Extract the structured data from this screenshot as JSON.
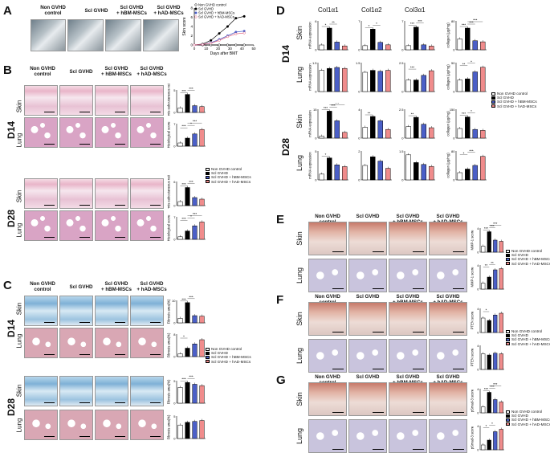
{
  "panels": {
    "A": "A",
    "B": "B",
    "C": "C",
    "D": "D",
    "E": "E",
    "F": "F",
    "G": "G"
  },
  "groups": {
    "non": "Non GVHD\ncontrol",
    "scl": "Scl GVHD",
    "hbm": "Scl GVHD\n+ hBM-MSCs",
    "had": "Scl GVHD\n+ hAD-MSCs"
  },
  "legend": [
    "Non GVHD control",
    "Scl GVHD",
    "Scl GVHD + hBM-MSCs",
    "Scl GVHD + hAD-MSCs"
  ],
  "legend_a": [
    "Non GVHD control",
    "Scl GVHD",
    "Scl GVHD + hBM-MSCs",
    "Scl GVHD + hAD-MSCs"
  ],
  "rows": {
    "skin": "Skin",
    "lung": "Lung"
  },
  "days": {
    "d14": "D14",
    "d28": "D28"
  },
  "colors": {
    "non": "#ffffff",
    "scl": "#000000",
    "hbm": "#4b5fc7",
    "had": "#f08c8c"
  },
  "panelA": {
    "ylabel": "Skin score",
    "xlabel": "Days after BMT",
    "xticks": [
      "0",
      "10",
      "20",
      "30",
      "40",
      "50"
    ],
    "yticks": [
      "0",
      "2",
      "4",
      "6",
      "8"
    ]
  },
  "panelB": {
    "ylabels": [
      "Dermis-subcutaneous ratio",
      "Histological score",
      "Dermis-subcutaneous ratio",
      "Histological score"
    ]
  },
  "panelC": {
    "ylabels": [
      "Fibrosis area(%)",
      "Fibrosis area(%)",
      "Fibrosis area(%)",
      "Fibrosis area(%)"
    ]
  },
  "panelD": {
    "cols": [
      "Col1α1",
      "Col1α2",
      "Col3α1"
    ],
    "mrna": "mRNA expression",
    "collagen": "collagen (μg/mg)"
  },
  "panelE": {
    "ylabels": [
      "MMP-1 score",
      "MMP-1 score"
    ]
  },
  "panelF": {
    "ylabels": [
      "PTEN score",
      "PTEN score"
    ]
  },
  "panelG": {
    "ylabels": [
      "pSmad-3 score",
      "pSmad-3 score"
    ]
  },
  "chart_data": [
    {
      "type": "bar",
      "id": "B-d14-skin",
      "categories": [
        "Non GVHD control",
        "Scl GVHD",
        "Scl GVHD + hBM-MSCs",
        "Scl GVHD + hAD-MSCs"
      ],
      "values": [
        1,
        4,
        1.5,
        1.3
      ],
      "ylim": [
        0,
        5
      ],
      "sig": [
        "***",
        "***"
      ]
    },
    {
      "type": "bar",
      "id": "B-d14-lung",
      "categories": [
        "Non GVHD control",
        "Scl GVHD",
        "Scl GVHD + hBM-MSCs",
        "Scl GVHD + hAD-MSCs"
      ],
      "values": [
        1,
        2.5,
        3.8,
        5.2
      ],
      "ylim": [
        0,
        7
      ],
      "sig": [
        "***",
        "*",
        "***"
      ]
    },
    {
      "type": "bar",
      "id": "B-d28-skin",
      "categories": [
        "Non GVHD control",
        "Scl GVHD",
        "Scl GVHD + hBM-MSCs",
        "Scl GVHD + hAD-MSCs"
      ],
      "values": [
        1,
        4.5,
        2,
        1.6
      ],
      "ylim": [
        0,
        6
      ],
      "sig": [
        "***",
        "***"
      ]
    },
    {
      "type": "bar",
      "id": "B-d28-lung",
      "categories": [
        "Non GVHD control",
        "Scl GVHD",
        "Scl GVHD + hBM-MSCs",
        "Scl GVHD + hAD-MSCs"
      ],
      "values": [
        0.8,
        2.6,
        4.2,
        5.4
      ],
      "ylim": [
        0,
        7
      ],
      "sig": [
        "***",
        "*",
        "***"
      ]
    },
    {
      "type": "bar",
      "id": "C-d14-skin",
      "categories": [
        "Non GVHD control",
        "Scl GVHD",
        "Scl GVHD + hBM-MSCs",
        "Scl GVHD + hAD-MSCs"
      ],
      "values": [
        2,
        9,
        3.2,
        3
      ],
      "ylim": [
        0,
        10
      ],
      "sig": [
        "***",
        "***"
      ]
    },
    {
      "type": "bar",
      "id": "C-d14-lung",
      "categories": [
        "Non GVHD control",
        "Scl GVHD",
        "Scl GVHD + hBM-MSCs",
        "Scl GVHD + hAD-MSCs"
      ],
      "values": [
        1,
        3,
        4.5,
        6
      ],
      "ylim": [
        0,
        8
      ],
      "sig": [
        "*"
      ]
    },
    {
      "type": "bar",
      "id": "C-d28-skin",
      "categories": [
        "Non GVHD control",
        "Scl GVHD",
        "Scl GVHD + hBM-MSCs",
        "Scl GVHD + hAD-MSCs"
      ],
      "values": [
        3.5,
        4.6,
        4.2,
        3.9
      ],
      "ylim": [
        0,
        5
      ],
      "sig": [
        "***",
        "***"
      ]
    },
    {
      "type": "bar",
      "id": "C-d28-lung",
      "categories": [
        "Non GVHD control",
        "Scl GVHD",
        "Scl GVHD + hBM-MSCs",
        "Scl GVHD + hAD-MSCs"
      ],
      "values": [
        3,
        3.6,
        3.8,
        4
      ],
      "ylim": [
        0,
        5
      ],
      "sig": []
    },
    {
      "type": "bar",
      "id": "D-d14-skin-c1",
      "categories": [
        "Non GVHD control",
        "Scl GVHD",
        "Scl GVHD + hBM-MSCs",
        "Scl GVHD + hAD-MSCs"
      ],
      "values": [
        1,
        4.5,
        1.6,
        0.8
      ],
      "ylim": [
        0,
        6
      ],
      "sig": [
        "*",
        "**"
      ]
    },
    {
      "type": "bar",
      "id": "D-d14-skin-c2",
      "categories": [
        "Non GVHD control",
        "Scl GVHD",
        "Scl GVHD + hBM-MSCs",
        "Scl GVHD + hAD-MSCs"
      ],
      "values": [
        1,
        5,
        1.8,
        1.2
      ],
      "ylim": [
        0,
        7
      ],
      "sig": [
        "*",
        "*"
      ]
    },
    {
      "type": "bar",
      "id": "D-d14-skin-c3",
      "categories": [
        "Non GVHD control",
        "Scl GVHD",
        "Scl GVHD + hBM-MSCs",
        "Scl GVHD + hAD-MSCs"
      ],
      "values": [
        1,
        5.5,
        1.2,
        0.9
      ],
      "ylim": [
        0,
        7
      ],
      "sig": [
        "***",
        "***"
      ]
    },
    {
      "type": "bar",
      "id": "D-d14-skin-col",
      "categories": [
        "Non GVHD control",
        "Scl GVHD",
        "Scl GVHD + hBM-MSCs",
        "Scl GVHD + hAD-MSCs"
      ],
      "values": [
        30,
        60,
        25,
        22
      ],
      "ylim": [
        0,
        80
      ],
      "sig": [
        "***",
        "***",
        "***"
      ]
    },
    {
      "type": "bar",
      "id": "D-d14-lung-c1",
      "categories": [
        "Non GVHD control",
        "Scl GVHD",
        "Scl GVHD + hBM-MSCs",
        "Scl GVHD + hAD-MSCs"
      ],
      "values": [
        1.1,
        1.2,
        1.25,
        1.2
      ],
      "ylim": [
        0,
        1.5
      ],
      "sig": []
    },
    {
      "type": "bar",
      "id": "D-d14-lung-c2",
      "categories": [
        "Non GVHD control",
        "Scl GVHD",
        "Scl GVHD + hBM-MSCs",
        "Scl GVHD + hAD-MSCs"
      ],
      "values": [
        1,
        1.1,
        1.05,
        1.1
      ],
      "ylim": [
        0,
        1.5
      ],
      "sig": []
    },
    {
      "type": "bar",
      "id": "D-d14-lung-c3",
      "categories": [
        "Non GVHD control",
        "Scl GVHD",
        "Scl GVHD + hBM-MSCs",
        "Scl GVHD + hAD-MSCs"
      ],
      "values": [
        1,
        1,
        1.4,
        1.8
      ],
      "ylim": [
        0,
        2.5
      ],
      "sig": [
        "***"
      ]
    },
    {
      "type": "bar",
      "id": "D-d14-lung-col",
      "categories": [
        "Non GVHD control",
        "Scl GVHD",
        "Scl GVHD + hBM-MSCs",
        "Scl GVHD + hAD-MSCs"
      ],
      "values": [
        20,
        22,
        34,
        42
      ],
      "ylim": [
        0,
        50
      ],
      "sig": [
        "**",
        "*"
      ]
    },
    {
      "type": "bar",
      "id": "D-d28-skin-c1",
      "categories": [
        "Non GVHD control",
        "Scl GVHD",
        "Scl GVHD + hBM-MSCs",
        "Scl GVHD + hAD-MSCs"
      ],
      "values": [
        1,
        14,
        9,
        3
      ],
      "ylim": [
        0,
        15
      ],
      "sig": [
        "***",
        "***",
        "***"
      ]
    },
    {
      "type": "bar",
      "id": "D-d28-skin-c2",
      "categories": [
        "Non GVHD control",
        "Scl GVHD",
        "Scl GVHD + hBM-MSCs",
        "Scl GVHD + hAD-MSCs"
      ],
      "values": [
        1.5,
        3,
        2.4,
        1.2
      ],
      "ylim": [
        0,
        4
      ],
      "sig": [
        "**"
      ]
    },
    {
      "type": "bar",
      "id": "D-d28-skin-c3",
      "categories": [
        "Non GVHD control",
        "Scl GVHD",
        "Scl GVHD + hBM-MSCs",
        "Scl GVHD + hAD-MSCs"
      ],
      "values": [
        1,
        1.8,
        1.2,
        0.9
      ],
      "ylim": [
        0,
        2.5
      ],
      "sig": [
        "**"
      ]
    },
    {
      "type": "bar",
      "id": "D-d28-skin-col",
      "categories": [
        "Non GVHD control",
        "Scl GVHD",
        "Scl GVHD + hBM-MSCs",
        "Scl GVHD + hAD-MSCs"
      ],
      "values": [
        50,
        110,
        45,
        40
      ],
      "ylim": [
        0,
        150
      ],
      "sig": [
        "***",
        "*"
      ]
    },
    {
      "type": "bar",
      "id": "D-d28-lung-c1",
      "categories": [
        "Non GVHD control",
        "Scl GVHD",
        "Scl GVHD + hBM-MSCs",
        "Scl GVHD + hAD-MSCs"
      ],
      "values": [
        1,
        3.8,
        2.6,
        2.3
      ],
      "ylim": [
        0,
        5
      ],
      "sig": [
        "*"
      ]
    },
    {
      "type": "bar",
      "id": "D-d28-lung-c2",
      "categories": [
        "Non GVHD control",
        "Scl GVHD",
        "Scl GVHD + hBM-MSCs",
        "Scl GVHD + hAD-MSCs"
      ],
      "values": [
        1,
        1.6,
        1.3,
        0.8
      ],
      "ylim": [
        0,
        2
      ],
      "sig": []
    },
    {
      "type": "bar",
      "id": "D-d28-lung-c3",
      "categories": [
        "Non GVHD control",
        "Scl GVHD",
        "Scl GVHD + hBM-MSCs",
        "Scl GVHD + hAD-MSCs"
      ],
      "values": [
        1.3,
        0.9,
        0.8,
        0.7
      ],
      "ylim": [
        0,
        1.5
      ],
      "sig": []
    },
    {
      "type": "bar",
      "id": "D-d28-lung-col",
      "categories": [
        "Non GVHD control",
        "Scl GVHD",
        "Scl GVHD + hBM-MSCs",
        "Scl GVHD + hAD-MSCs"
      ],
      "values": [
        20,
        30,
        40,
        65
      ],
      "ylim": [
        0,
        80
      ],
      "sig": [
        "*",
        "***"
      ]
    },
    {
      "type": "bar",
      "id": "E-skin",
      "categories": [
        "Non GVHD control",
        "Scl GVHD",
        "Scl GVHD + hBM-MSCs",
        "Scl GVHD + hAD-MSCs"
      ],
      "values": [
        1,
        3.4,
        2,
        1.8
      ],
      "ylim": [
        0,
        4
      ],
      "sig": [
        "***",
        "***",
        "***"
      ]
    },
    {
      "type": "bar",
      "id": "E-lung",
      "categories": [
        "Non GVHD control",
        "Scl GVHD",
        "Scl GVHD + hBM-MSCs",
        "Scl GVHD + hAD-MSCs"
      ],
      "values": [
        1,
        2,
        3.2,
        3.4
      ],
      "ylim": [
        0,
        4
      ],
      "sig": [
        "**",
        "**"
      ]
    },
    {
      "type": "bar",
      "id": "F-skin",
      "categories": [
        "Non GVHD control",
        "Scl GVHD",
        "Scl GVHD + hBM-MSCs",
        "Scl GVHD + hAD-MSCs"
      ],
      "values": [
        2.4,
        2,
        2.9,
        3.2
      ],
      "ylim": [
        0,
        4
      ],
      "sig": [
        "*"
      ]
    },
    {
      "type": "bar",
      "id": "F-lung",
      "categories": [
        "Non GVHD control",
        "Scl GVHD",
        "Scl GVHD + hBM-MSCs",
        "Scl GVHD + hAD-MSCs"
      ],
      "values": [
        2.6,
        2.4,
        2.7,
        2.6
      ],
      "ylim": [
        0,
        4
      ],
      "sig": []
    },
    {
      "type": "bar",
      "id": "G-skin",
      "categories": [
        "Non GVHD control",
        "Scl GVHD",
        "Scl GVHD + hBM-MSCs",
        "Scl GVHD + hAD-MSCs"
      ],
      "values": [
        1,
        3.4,
        2.2,
        1.8
      ],
      "ylim": [
        0,
        4
      ],
      "sig": [
        "***",
        "***",
        "***"
      ]
    },
    {
      "type": "bar",
      "id": "G-lung",
      "categories": [
        "Non GVHD control",
        "Scl GVHD",
        "Scl GVHD + hBM-MSCs",
        "Scl GVHD + hAD-MSCs"
      ],
      "values": [
        0.8,
        1.6,
        3,
        3.4
      ],
      "ylim": [
        0,
        4
      ],
      "sig": [
        "*",
        "*"
      ]
    },
    {
      "type": "line",
      "id": "A-skin-score",
      "x": [
        0,
        7,
        14,
        21,
        28,
        35,
        42
      ],
      "series": [
        {
          "name": "Non GVHD control",
          "values": [
            0,
            0,
            0,
            0,
            0,
            0,
            0
          ]
        },
        {
          "name": "Scl GVHD",
          "values": [
            0,
            0.2,
            1,
            2.5,
            4,
            5.8,
            6.2
          ]
        },
        {
          "name": "Scl GVHD + hBM-MSCs",
          "values": [
            0,
            0.1,
            0.5,
            1.2,
            2,
            2.8,
            3
          ]
        },
        {
          "name": "Scl GVHD + hAD-MSCs",
          "values": [
            0,
            0.1,
            0.4,
            1,
            1.8,
            2.4,
            2.6
          ]
        }
      ],
      "xlabel": "Days after BMT",
      "ylabel": "Skin score",
      "ylim": [
        0,
        8
      ],
      "xlim": [
        0,
        50
      ]
    }
  ]
}
